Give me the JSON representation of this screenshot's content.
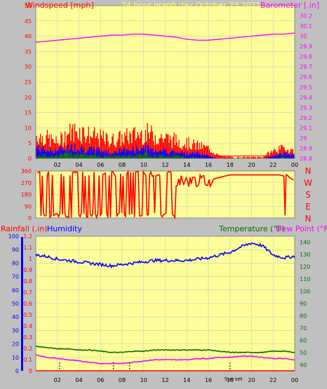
{
  "colors": {
    "background": "#c0c0c0",
    "plot_bg": "#ffff99",
    "grid": "#c8c8c8",
    "wind": "#ff0000",
    "gust": "#ff0000",
    "avg_wind": "#0000ff",
    "low_wind": "#008000",
    "barometer": "#ff00ff",
    "direction": "#ff0000",
    "humidity": "#0000ff",
    "temperature": "#007000",
    "dew_point": "#ff00ff",
    "rainfall": "#ff0000",
    "title": "#ffff66",
    "marker": "#000000"
  },
  "chart_data": [
    {
      "type": "line",
      "panel": "wind-barometer",
      "title": "24 hour graph day   October 23 2021",
      "ylabel_left": "Windspeed [mph]",
      "ylabel_right": "Barometer [.in]",
      "ylim_left": [
        0,
        50
      ],
      "ylim_right": [
        28.8,
        30.3
      ],
      "yticks_left": [
        "0",
        "5",
        "10",
        "15",
        "20",
        "25",
        "30",
        "35",
        "40",
        "45",
        "50"
      ],
      "yticks_right": [
        "28.8",
        "28.9",
        "29",
        "29.1",
        "29.2",
        "29.3",
        "29.4",
        "29.5",
        "29.6",
        "29.7",
        "29.8",
        "29.9",
        "30",
        "30.1",
        "30.2"
      ],
      "xticks": [
        "02",
        "04",
        "06",
        "08",
        "10",
        "12",
        "14",
        "16",
        "18",
        "20",
        "22",
        "00"
      ],
      "series": [
        {
          "name": "Barometer",
          "axis": "right",
          "x": [
            0,
            1,
            2,
            3,
            4,
            5,
            6,
            7,
            8,
            9,
            10,
            11,
            12,
            13,
            14,
            15,
            16,
            17,
            18,
            19,
            20,
            21,
            22,
            23,
            24
          ],
          "values": [
            29.94,
            29.95,
            29.96,
            29.97,
            29.98,
            29.99,
            30.0,
            30.01,
            30.01,
            30.02,
            30.02,
            30.01,
            30.0,
            29.99,
            29.97,
            29.96,
            29.96,
            29.97,
            29.98,
            29.99,
            30.0,
            30.01,
            30.02,
            30.02,
            30.03
          ]
        },
        {
          "name": "Wind gust",
          "axis": "left",
          "x": [
            0,
            1,
            2,
            3,
            4,
            5,
            6,
            7,
            8,
            9,
            10,
            11,
            12,
            13,
            14,
            15,
            16,
            17,
            18,
            19,
            20,
            21,
            22,
            23,
            24
          ],
          "values": [
            9,
            8,
            6,
            10,
            11,
            9,
            8,
            7,
            8,
            9,
            10,
            9,
            8,
            7,
            6,
            5,
            4,
            1,
            0.5,
            0.5,
            0.5,
            0.5,
            3,
            4,
            3
          ]
        },
        {
          "name": "Average wind",
          "axis": "left",
          "x": [
            0,
            1,
            2,
            3,
            4,
            5,
            6,
            7,
            8,
            9,
            10,
            11,
            12,
            13,
            14,
            15,
            16,
            17,
            18,
            19,
            20,
            21,
            22,
            23,
            24
          ],
          "values": [
            4,
            3,
            3,
            4,
            4,
            3,
            3,
            2,
            3,
            3,
            4,
            3,
            3,
            2,
            2,
            2,
            1,
            0,
            0,
            0,
            0,
            0,
            1,
            2,
            1
          ]
        },
        {
          "name": "Low wind",
          "axis": "left",
          "x": [
            0,
            1,
            2,
            3,
            4,
            5,
            6,
            7,
            8,
            9,
            10,
            11,
            12,
            13,
            14,
            15,
            16,
            17,
            18,
            19,
            20,
            21,
            22,
            23,
            24
          ],
          "values": [
            1,
            1,
            1,
            2,
            2,
            1,
            1,
            1,
            1,
            1,
            2,
            1,
            1,
            1,
            0.5,
            0.5,
            0,
            0,
            0,
            0,
            0,
            0,
            0,
            0.5,
            0
          ]
        }
      ]
    },
    {
      "type": "line",
      "panel": "wind-direction",
      "ylim": [
        0,
        360
      ],
      "yticks": [
        "0",
        "90",
        "180",
        "270",
        "360"
      ],
      "compass_labels": [
        "N",
        "W",
        "S",
        "E",
        "N"
      ],
      "xticks": [
        "02",
        "04",
        "06",
        "08",
        "10",
        "12",
        "14",
        "16",
        "18",
        "20",
        "22",
        "00"
      ],
      "series": [
        {
          "name": "Wind direction",
          "x": [
            0,
            0.6,
            1.2,
            1.8,
            2.4,
            3.0,
            3.6,
            4.2,
            4.8,
            5.4,
            6.0,
            6.6,
            7.2,
            7.8,
            8.4,
            9.0,
            9.6,
            10.2,
            10.8,
            11.4,
            12.0,
            12.6,
            13.2,
            13.8,
            14.4,
            15.0,
            15.6,
            16.2,
            16.8,
            17.4,
            18.0,
            19.0,
            20.0,
            21.0,
            22.0,
            22.6,
            23.2,
            23.8,
            24
          ],
          "values": [
            10,
            350,
            15,
            340,
            20,
            330,
            10,
            345,
            25,
            335,
            15,
            350,
            20,
            340,
            10,
            330,
            30,
            345,
            15,
            320,
            250,
            340,
            220,
            330,
            260,
            280,
            300,
            290,
            310,
            320,
            330,
            330,
            330,
            330,
            330,
            330,
            20,
            330,
            300
          ]
        }
      ]
    },
    {
      "type": "line",
      "panel": "temp-humidity-rain",
      "ylabel_left_1": "Rainfall (.in)",
      "ylabel_left_2": "Humidity",
      "ylabel_right_1": "Temperature (°F)",
      "ylabel_right_2": "Dew Point (°F)",
      "ylim_humidity": [
        0,
        100
      ],
      "ylim_rain": [
        0,
        1.2
      ],
      "ylim_temp": [
        35,
        145
      ],
      "yticks_humidity": [
        "0",
        "10",
        "20",
        "30",
        "40",
        "50",
        "60",
        "70",
        "80",
        "90",
        "100"
      ],
      "yticks_rain": [
        "0",
        "0.1",
        "0.2",
        "0.3",
        "0.4",
        "0.5",
        "0.6",
        "0.7",
        "0.8",
        "0.9",
        "1",
        "1.1",
        "1.2"
      ],
      "yticks_temp": [
        "40",
        "50",
        "60",
        "70",
        "80",
        "90",
        "100",
        "110",
        "120",
        "130",
        "140"
      ],
      "xticks": [
        "02",
        "04",
        "06",
        "08",
        "10",
        "12",
        "14",
        "16",
        "18",
        "20",
        "22",
        "00"
      ],
      "annotations": [
        "Sunrise",
        "Sunset"
      ],
      "series": [
        {
          "name": "Humidity",
          "axis": "humidity",
          "x": [
            0,
            1,
            2,
            3,
            4,
            5,
            6,
            7,
            8,
            9,
            10,
            11,
            12,
            13,
            14,
            15,
            16,
            17,
            18,
            19,
            20,
            21,
            22,
            23,
            24
          ],
          "values": [
            86,
            85,
            83,
            82,
            81,
            80,
            79,
            78,
            79,
            80,
            81,
            82,
            82,
            82,
            82,
            83,
            84,
            86,
            88,
            92,
            95,
            93,
            86,
            84,
            85
          ]
        },
        {
          "name": "Temperature",
          "axis": "temp",
          "x": [
            0,
            1,
            2,
            3,
            4,
            5,
            6,
            7,
            8,
            9,
            10,
            11,
            12,
            13,
            14,
            15,
            16,
            17,
            18,
            19,
            20,
            21,
            22,
            23,
            24
          ],
          "values": [
            55,
            54,
            53,
            53,
            52,
            52,
            51,
            50,
            50,
            51,
            51,
            52,
            52,
            52,
            52,
            52,
            52,
            51,
            50,
            50,
            50,
            50,
            51,
            51,
            50
          ]
        },
        {
          "name": "Dew Point",
          "axis": "temp",
          "x": [
            0,
            1,
            2,
            3,
            4,
            5,
            6,
            7,
            8,
            9,
            10,
            11,
            12,
            13,
            14,
            15,
            16,
            17,
            18,
            19,
            20,
            21,
            22,
            23,
            24
          ],
          "values": [
            48,
            46,
            45,
            44,
            43,
            42,
            41,
            41,
            41,
            42,
            43,
            44,
            44,
            44,
            44,
            45,
            45,
            46,
            46,
            47,
            47,
            46,
            45,
            45,
            44
          ]
        },
        {
          "name": "Rainfall",
          "axis": "rain",
          "x": [
            0,
            24
          ],
          "values": [
            0,
            0
          ]
        }
      ],
      "markers": [
        {
          "label": "",
          "x": 2.2
        },
        {
          "label": "Sunrise",
          "x": 7.2
        },
        {
          "label": "",
          "x": 8.7
        },
        {
          "label": "Sunset",
          "x": 18.0
        }
      ]
    }
  ]
}
